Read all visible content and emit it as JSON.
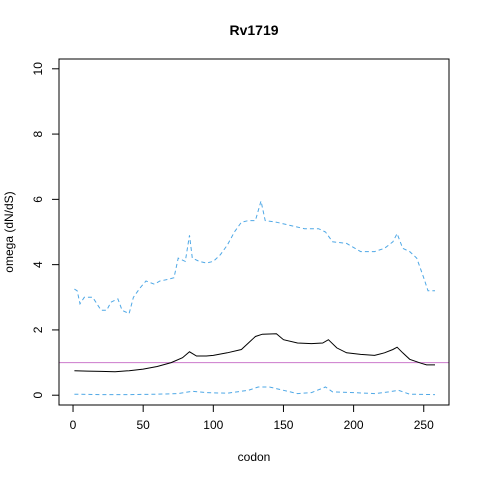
{
  "chart_data": {
    "type": "line",
    "title": "Rv1719",
    "xlabel": "codon",
    "ylabel": "omega (dN/dS)",
    "xlim": [
      -10,
      268
    ],
    "ylim": [
      -0.3,
      10.3
    ],
    "x_ticks": [
      0,
      50,
      100,
      150,
      200,
      250
    ],
    "y_ticks": [
      0,
      2,
      4,
      6,
      8,
      10
    ],
    "grid": false,
    "reference_line": {
      "y": 1,
      "color": "#cc79cc"
    },
    "series": [
      {
        "style": "solid",
        "color": "#000000",
        "points": [
          [
            1,
            0.75
          ],
          [
            10,
            0.74
          ],
          [
            20,
            0.73
          ],
          [
            30,
            0.72
          ],
          [
            40,
            0.75
          ],
          [
            50,
            0.8
          ],
          [
            60,
            0.88
          ],
          [
            70,
            1.0
          ],
          [
            78,
            1.15
          ],
          [
            83,
            1.33
          ],
          [
            88,
            1.2
          ],
          [
            95,
            1.2
          ],
          [
            100,
            1.22
          ],
          [
            110,
            1.3
          ],
          [
            120,
            1.4
          ],
          [
            125,
            1.6
          ],
          [
            130,
            1.8
          ],
          [
            135,
            1.87
          ],
          [
            145,
            1.88
          ],
          [
            150,
            1.7
          ],
          [
            160,
            1.6
          ],
          [
            170,
            1.58
          ],
          [
            178,
            1.6
          ],
          [
            182,
            1.7
          ],
          [
            188,
            1.45
          ],
          [
            195,
            1.3
          ],
          [
            205,
            1.25
          ],
          [
            215,
            1.22
          ],
          [
            222,
            1.3
          ],
          [
            228,
            1.4
          ],
          [
            231,
            1.47
          ],
          [
            235,
            1.3
          ],
          [
            240,
            1.1
          ],
          [
            248,
            0.98
          ],
          [
            252,
            0.93
          ],
          [
            258,
            0.93
          ]
        ]
      },
      {
        "style": "dashed",
        "color": "#4fa8e6",
        "points": [
          [
            1,
            3.25
          ],
          [
            3,
            3.2
          ],
          [
            5,
            2.8
          ],
          [
            8,
            3.0
          ],
          [
            14,
            3.0
          ],
          [
            17,
            2.8
          ],
          [
            20,
            2.6
          ],
          [
            24,
            2.6
          ],
          [
            27,
            2.85
          ],
          [
            32,
            2.95
          ],
          [
            35,
            2.6
          ],
          [
            40,
            2.5
          ],
          [
            43,
            3.0
          ],
          [
            48,
            3.3
          ],
          [
            52,
            3.5
          ],
          [
            58,
            3.4
          ],
          [
            62,
            3.5
          ],
          [
            68,
            3.55
          ],
          [
            72,
            3.6
          ],
          [
            75,
            4.2
          ],
          [
            80,
            4.1
          ],
          [
            83,
            4.9
          ],
          [
            85,
            4.2
          ],
          [
            90,
            4.1
          ],
          [
            95,
            4.05
          ],
          [
            100,
            4.1
          ],
          [
            105,
            4.3
          ],
          [
            110,
            4.6
          ],
          [
            115,
            5.0
          ],
          [
            120,
            5.3
          ],
          [
            125,
            5.35
          ],
          [
            130,
            5.35
          ],
          [
            134,
            5.95
          ],
          [
            137,
            5.35
          ],
          [
            145,
            5.3
          ],
          [
            155,
            5.2
          ],
          [
            165,
            5.1
          ],
          [
            175,
            5.1
          ],
          [
            180,
            5.0
          ],
          [
            185,
            4.7
          ],
          [
            195,
            4.65
          ],
          [
            205,
            4.4
          ],
          [
            215,
            4.4
          ],
          [
            222,
            4.5
          ],
          [
            228,
            4.7
          ],
          [
            231,
            4.95
          ],
          [
            235,
            4.5
          ],
          [
            240,
            4.4
          ],
          [
            245,
            4.2
          ],
          [
            250,
            3.6
          ],
          [
            253,
            3.2
          ],
          [
            258,
            3.2
          ]
        ]
      },
      {
        "style": "dashed",
        "color": "#4fa8e6",
        "points": [
          [
            1,
            0.03
          ],
          [
            20,
            0.02
          ],
          [
            40,
            0.02
          ],
          [
            60,
            0.03
          ],
          [
            75,
            0.05
          ],
          [
            85,
            0.12
          ],
          [
            95,
            0.08
          ],
          [
            110,
            0.06
          ],
          [
            125,
            0.15
          ],
          [
            132,
            0.25
          ],
          [
            140,
            0.25
          ],
          [
            150,
            0.15
          ],
          [
            160,
            0.05
          ],
          [
            170,
            0.08
          ],
          [
            180,
            0.25
          ],
          [
            185,
            0.1
          ],
          [
            200,
            0.08
          ],
          [
            215,
            0.05
          ],
          [
            225,
            0.1
          ],
          [
            232,
            0.15
          ],
          [
            240,
            0.03
          ],
          [
            258,
            0.02
          ]
        ]
      }
    ]
  }
}
